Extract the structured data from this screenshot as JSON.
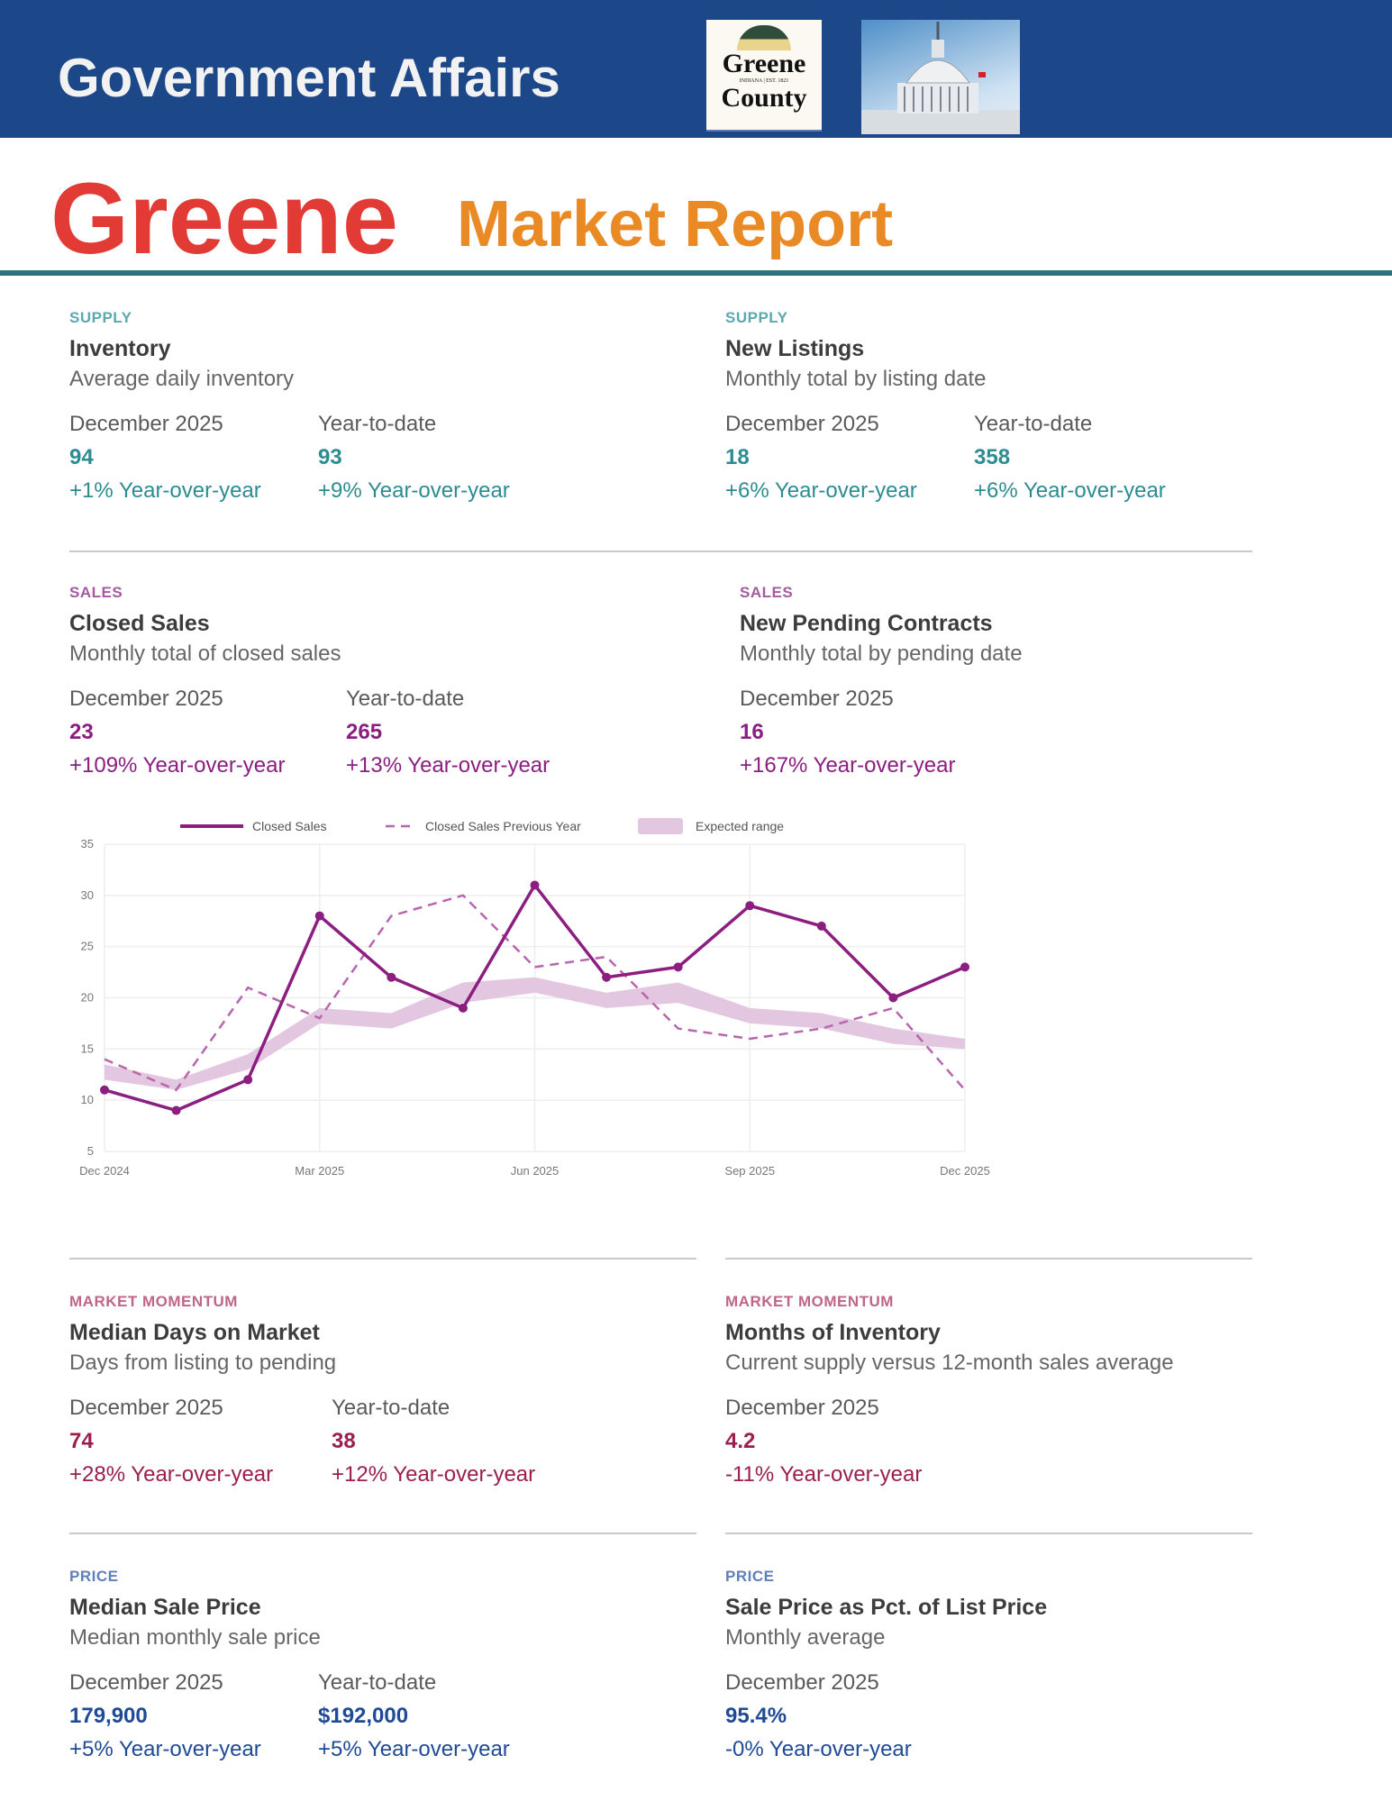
{
  "header": {
    "title": "Government Affairs",
    "logo_text_line1": "Greene",
    "logo_text_line2": "County",
    "logo_small_text": "INDIANA | EST. 1821"
  },
  "report": {
    "title_county": "Greene",
    "title_rest": "Market Report"
  },
  "colors": {
    "band": "#1c4788",
    "county_title": "#e23b36",
    "report_title": "#ea8a25",
    "rule": "#2c747c",
    "supply": "#2c8c92",
    "sales": "#8b1e80",
    "momentum": "#9a1f4e",
    "price": "#1f4a96"
  },
  "cards": [
    {
      "category": "SUPPLY",
      "title": "Inventory",
      "subtitle": "Average daily inventory",
      "theme": "supply",
      "stats": [
        {
          "period": "December 2025",
          "value": "94",
          "yoy": "+1% Year-over-year"
        },
        {
          "period": "Year-to-date",
          "value": "93",
          "yoy": "+9% Year-over-year"
        }
      ]
    },
    {
      "category": "SUPPLY",
      "title": "New Listings",
      "subtitle": "Monthly total by listing date",
      "theme": "supply",
      "stats": [
        {
          "period": "December 2025",
          "value": "18",
          "yoy": "+6% Year-over-year"
        },
        {
          "period": "Year-to-date",
          "value": "358",
          "yoy": "+6% Year-over-year"
        }
      ]
    },
    {
      "category": "SALES",
      "title": "Closed Sales",
      "subtitle": "Monthly total of closed sales",
      "theme": "sales",
      "stats": [
        {
          "period": "December 2025",
          "value": "23",
          "yoy": "+109% Year-over-year"
        },
        {
          "period": "Year-to-date",
          "value": "265",
          "yoy": "+13% Year-over-year"
        }
      ]
    },
    {
      "category": "SALES",
      "title": "New Pending Contracts",
      "subtitle": "Monthly total by pending date",
      "theme": "sales",
      "stats": [
        {
          "period": "December 2025",
          "value": "16",
          "yoy": "+167% Year-over-year"
        }
      ]
    },
    {
      "category": "MARKET MOMENTUM",
      "title": "Median Days on Market",
      "subtitle": "Days from listing to pending",
      "theme": "momentum",
      "stats": [
        {
          "period": "December 2025",
          "value": "74",
          "yoy": "+28% Year-over-year"
        },
        {
          "period": "Year-to-date",
          "value": "38",
          "yoy": "+12% Year-over-year"
        }
      ]
    },
    {
      "category": "MARKET MOMENTUM",
      "title": "Months of Inventory",
      "subtitle": "Current supply versus 12-month sales average",
      "theme": "momentum",
      "stats": [
        {
          "period": "December 2025",
          "value": "4.2",
          "yoy": "-11% Year-over-year"
        }
      ]
    },
    {
      "category": "PRICE",
      "title": "Median Sale Price",
      "subtitle": "Median monthly sale price",
      "theme": "price",
      "stats": [
        {
          "period": "December 2025",
          "value": "179,900",
          "yoy": "+5% Year-over-year"
        },
        {
          "period": "Year-to-date",
          "value": "$192,000",
          "yoy": "+5% Year-over-year"
        }
      ]
    },
    {
      "category": "PRICE",
      "title": "Sale Price as Pct. of List Price",
      "subtitle": "Monthly average",
      "theme": "price",
      "stats": [
        {
          "period": "December 2025",
          "value": "95.4%",
          "yoy": "-0% Year-over-year"
        }
      ]
    }
  ],
  "chart_data": {
    "type": "line",
    "title": "",
    "xlabel": "",
    "ylabel": "",
    "x": [
      "Dec 2024",
      "Jan 2025",
      "Feb 2025",
      "Mar 2025",
      "Apr 2025",
      "May 2025",
      "Jun 2025",
      "Jul 2025",
      "Aug 2025",
      "Sep 2025",
      "Oct 2025",
      "Nov 2025",
      "Dec 2025"
    ],
    "x_tick_labels": [
      "Dec 2024",
      "Mar 2025",
      "Jun 2025",
      "Sep 2025",
      "Dec 2025"
    ],
    "y_ticks": [
      5,
      10,
      15,
      20,
      25,
      30,
      35
    ],
    "ylim": [
      5,
      35
    ],
    "grid": true,
    "legend": "top",
    "series": [
      {
        "name": "Closed Sales",
        "style": "solid-markers",
        "color": "#8b1e80",
        "values": [
          11,
          9,
          12,
          28,
          22,
          19,
          31,
          22,
          23,
          29,
          27,
          20,
          23
        ]
      },
      {
        "name": "Closed Sales Previous Year",
        "style": "dashed",
        "color": "#b866ae",
        "values": [
          14,
          11,
          21,
          18,
          28,
          30,
          23,
          24,
          17,
          16,
          17,
          19,
          11
        ]
      },
      {
        "name": "Expected range",
        "style": "band",
        "color": "#e3c7e0",
        "low": [
          12,
          11,
          13,
          17.5,
          17,
          19.5,
          20.5,
          19,
          19.5,
          17.5,
          17,
          15.5,
          15
        ],
        "high": [
          13.5,
          12,
          14.5,
          19,
          18.5,
          21.5,
          22,
          20.5,
          21.5,
          19,
          18.5,
          17,
          16
        ]
      }
    ]
  }
}
